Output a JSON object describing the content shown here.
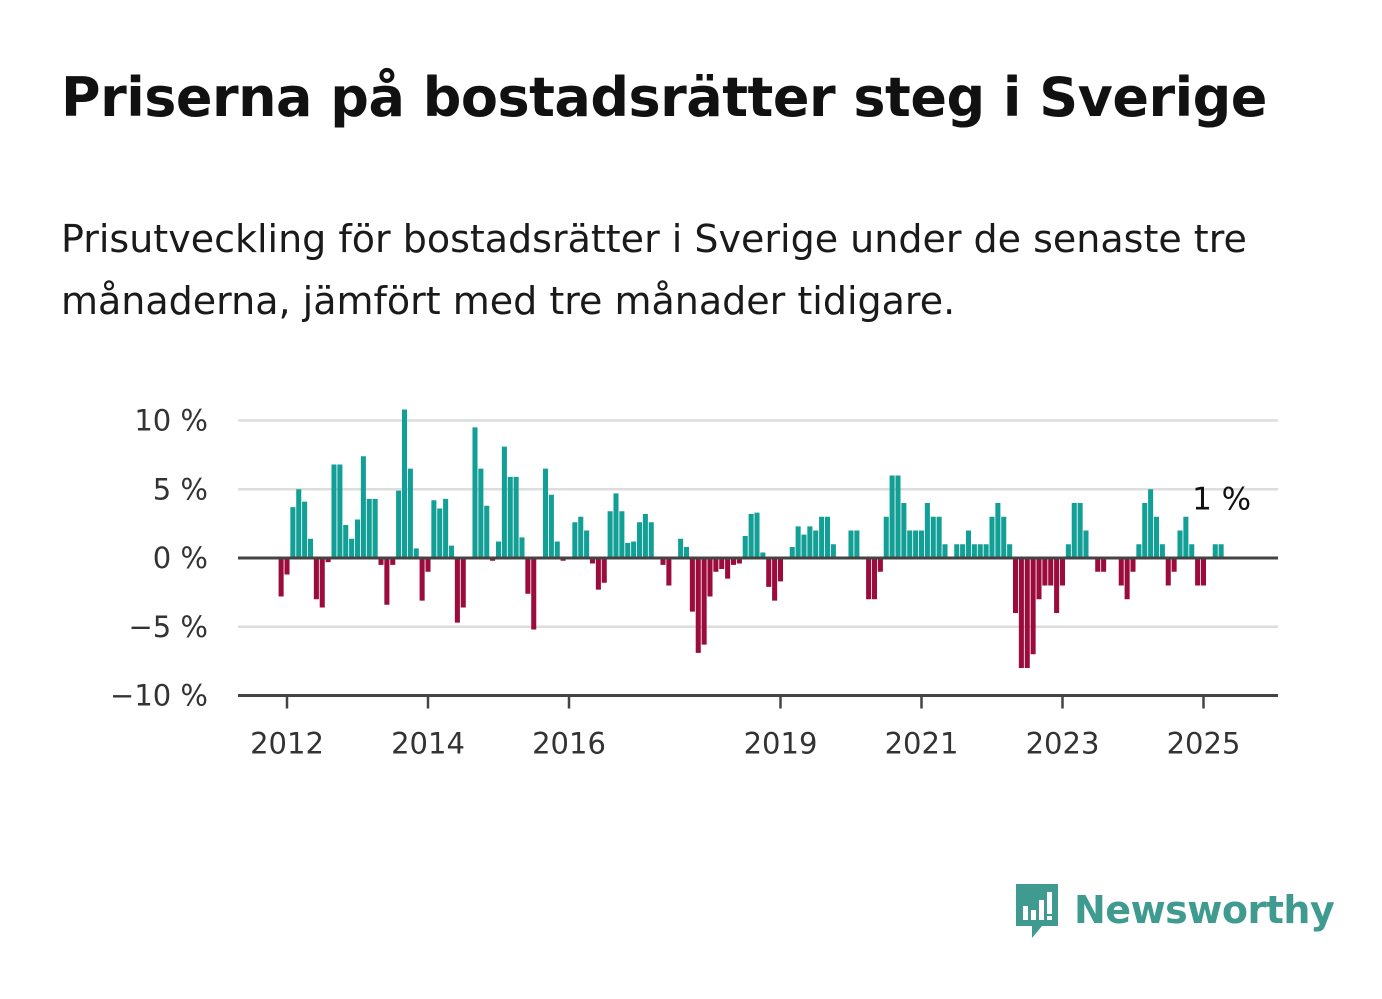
{
  "header": {
    "title": "Priserna på bostadsrätter steg i Sverige",
    "subtitle": "Prisutveckling för bostadsrätter i Sverige under de senaste tre månaderna, jämfört med tre månader tidigare."
  },
  "brand": {
    "name": "Newsworthy",
    "icon": "newsworthy-logo-icon",
    "color": "#3f9a8f"
  },
  "colors": {
    "positive": "#129f95",
    "negative": "#9b0b3c",
    "zero_line": "#444444",
    "grid": "#dddddd"
  },
  "chart_data": {
    "type": "bar",
    "title": "Priserna på bostadsrätter steg i Sverige",
    "subtitle": "Prisutveckling för bostadsrätter i Sverige under de senaste tre månaderna, jämfört med tre månader tidigare.",
    "xlabel": "",
    "ylabel": "",
    "x_start": "2011-12",
    "x_step": "month",
    "ylim": [
      -10,
      11
    ],
    "yticks": [
      10,
      5,
      0,
      -5,
      -10
    ],
    "ytick_labels": [
      "10 %",
      "5 %",
      "0 %",
      "−5 %",
      "−10 %"
    ],
    "xticks": [
      {
        "year": 2012,
        "label": "2012"
      },
      {
        "year": 2014,
        "label": "2014"
      },
      {
        "year": 2016,
        "label": "2016"
      },
      {
        "year": 2019,
        "label": "2019"
      },
      {
        "year": 2021,
        "label": "2021"
      },
      {
        "year": 2023,
        "label": "2023"
      },
      {
        "year": 2025,
        "label": "2025"
      }
    ],
    "annotation": {
      "label": "1 %",
      "value": 1
    },
    "grid": true,
    "values": [
      -2.8,
      -1.2,
      3.7,
      5.0,
      4.1,
      1.4,
      -3.0,
      -3.6,
      -0.3,
      6.8,
      6.8,
      2.4,
      1.4,
      2.8,
      7.4,
      4.3,
      4.3,
      -0.5,
      -3.4,
      -0.5,
      4.9,
      10.8,
      6.5,
      0.7,
      -3.1,
      -1.0,
      4.2,
      3.6,
      4.3,
      0.9,
      -4.7,
      -3.6,
      0.0,
      9.5,
      6.5,
      3.8,
      -0.2,
      1.2,
      8.1,
      5.9,
      5.9,
      1.5,
      -2.6,
      -5.2,
      0.1,
      6.5,
      4.6,
      1.2,
      -0.2,
      0.0,
      2.6,
      3.0,
      2.0,
      -0.4,
      -2.3,
      -1.8,
      3.4,
      4.7,
      3.4,
      1.1,
      1.2,
      2.6,
      3.2,
      2.6,
      0.0,
      -0.5,
      -2.0,
      0.0,
      1.4,
      0.8,
      -3.9,
      -6.9,
      -6.3,
      -2.8,
      -1.0,
      -0.8,
      -1.5,
      -0.5,
      -0.4,
      1.6,
      3.2,
      3.3,
      0.4,
      -2.1,
      -3.1,
      -1.7,
      0.0,
      0.8,
      2.3,
      1.7,
      2.3,
      2.0,
      3.0,
      3.0,
      1.0,
      0.0,
      0.0,
      2.0,
      2.0,
      0.0,
      -3.0,
      -3.0,
      -1.0,
      3.0,
      6.0,
      6.0,
      4.0,
      2.0,
      2.0,
      2.0,
      4.0,
      3.0,
      3.0,
      1.0,
      0.0,
      1.0,
      1.0,
      2.0,
      1.0,
      1.0,
      1.0,
      3.0,
      4.0,
      3.0,
      1.0,
      -4.0,
      -8.0,
      -8.0,
      -7.0,
      -3.0,
      -2.0,
      -2.0,
      -4.0,
      -2.0,
      1.0,
      4.0,
      4.0,
      2.0,
      0.0,
      -1.0,
      -1.0,
      0.0,
      0.0,
      -2.0,
      -3.0,
      -1.0,
      1.0,
      4.0,
      5.0,
      3.0,
      1.0,
      -2.0,
      -1.0,
      2.0,
      3.0,
      1.0,
      -2.0,
      -2.0,
      0.0,
      1.0,
      1.0
    ]
  }
}
